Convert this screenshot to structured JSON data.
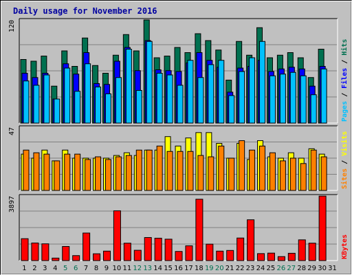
{
  "title": "Daily usage for November 2016",
  "colors": {
    "hits": "#007050",
    "files": "#0000ff",
    "pages": "#00c0ff",
    "visits": "#ffff00",
    "sites": "#ff8000",
    "kbytes": "#ff0000",
    "weekend_label": "#007050",
    "weekday_label": "#000000",
    "grid": "#808080",
    "panel": "#c0c0c0"
  },
  "chart_data": [
    {
      "type": "bar",
      "name": "hits-files-pages",
      "x": [
        1,
        2,
        3,
        4,
        5,
        6,
        7,
        8,
        9,
        10,
        11,
        12,
        13,
        14,
        15,
        16,
        17,
        18,
        19,
        20,
        21,
        22,
        23,
        24,
        25,
        26,
        27,
        28,
        29,
        30,
        31
      ],
      "ylim": [
        0,
        120
      ],
      "ytick_label": "120",
      "right_labels": [
        {
          "text": "Pages",
          "color": "#00c0ff"
        },
        {
          "text": " / ",
          "color": "#000000"
        },
        {
          "text": "Files",
          "color": "#0000ff"
        },
        {
          "text": " / ",
          "color": "#000000"
        },
        {
          "text": "Hits",
          "color": "#007050"
        }
      ],
      "series": [
        {
          "key": "hits",
          "values": [
            74,
            72,
            78,
            43,
            84,
            66,
            99,
            67,
            58,
            79,
            103,
            84,
            120,
            76,
            78,
            88,
            82,
            104,
            96,
            85,
            50,
            95,
            79,
            111,
            76,
            79,
            82,
            76,
            53,
            86,
            0
          ]
        },
        {
          "key": "files",
          "values": [
            58,
            53,
            58,
            28,
            69,
            57,
            82,
            46,
            45,
            72,
            88,
            61,
            96,
            62,
            61,
            60,
            70,
            82,
            73,
            65,
            36,
            64,
            66,
            73,
            60,
            63,
            65,
            63,
            43,
            66,
            0
          ]
        },
        {
          "key": "pages",
          "values": [
            49,
            44,
            56,
            28,
            64,
            37,
            69,
            42,
            34,
            53,
            86,
            38,
            95,
            58,
            56,
            44,
            73,
            53,
            68,
            73,
            32,
            60,
            76,
            95,
            55,
            57,
            59,
            55,
            33,
            63,
            0
          ]
        }
      ]
    },
    {
      "type": "bar",
      "name": "visits-sites",
      "x": [
        1,
        2,
        3,
        4,
        5,
        6,
        7,
        8,
        9,
        10,
        11,
        12,
        13,
        14,
        15,
        16,
        17,
        18,
        19,
        20,
        21,
        22,
        23,
        24,
        25,
        26,
        27,
        28,
        29,
        30,
        31
      ],
      "ylim": [
        0,
        47
      ],
      "ytick_label": "47",
      "right_labels": [
        {
          "text": "Sites",
          "color": "#ff8000"
        },
        {
          "text": " / ",
          "color": "#000000"
        },
        {
          "text": "Visits",
          "color": "#ffff00"
        }
      ],
      "series": [
        {
          "key": "visits",
          "values": [
            27,
            24,
            30,
            22,
            30,
            24,
            24,
            24,
            24,
            26,
            28,
            26,
            30,
            30,
            40,
            33,
            39,
            43,
            43,
            35,
            24,
            35,
            23,
            37,
            25,
            24,
            28,
            24,
            31,
            27,
            0
          ]
        },
        {
          "key": "sites",
          "values": [
            30,
            28,
            27,
            22,
            27,
            27,
            23,
            25,
            23,
            25,
            26,
            30,
            30,
            33,
            29,
            29,
            29,
            26,
            25,
            33,
            24,
            37,
            30,
            33,
            28,
            22,
            24,
            20,
            30,
            25,
            0
          ]
        }
      ]
    },
    {
      "type": "bar",
      "name": "kbytes",
      "x": [
        1,
        2,
        3,
        4,
        5,
        6,
        7,
        8,
        9,
        10,
        11,
        12,
        13,
        14,
        15,
        16,
        17,
        18,
        19,
        20,
        21,
        22,
        23,
        24,
        25,
        26,
        27,
        28,
        29,
        30,
        31
      ],
      "ylim": [
        0,
        3897
      ],
      "ytick_label": "3897",
      "right_labels": [
        {
          "text": "KBytes",
          "color": "#ff0000"
        }
      ],
      "series": [
        {
          "key": "kbytes",
          "values": [
            1320,
            1060,
            1010,
            150,
            850,
            300,
            1660,
            410,
            570,
            3000,
            1050,
            620,
            1390,
            1350,
            1290,
            550,
            890,
            3700,
            990,
            570,
            610,
            1360,
            2460,
            420,
            450,
            240,
            440,
            1250,
            1050,
            3890,
            0
          ]
        }
      ]
    }
  ],
  "x_labels": [
    "1",
    "2",
    "3",
    "4",
    "5",
    "6",
    "7",
    "8",
    "9",
    "10",
    "11",
    "12",
    "13",
    "14",
    "15",
    "16",
    "17",
    "18",
    "19",
    "20",
    "21",
    "22",
    "23",
    "24",
    "25",
    "26",
    "27",
    "28",
    "29",
    "30",
    "31"
  ],
  "weekend_days": [
    5,
    6,
    12,
    13,
    19,
    20,
    26,
    27
  ]
}
